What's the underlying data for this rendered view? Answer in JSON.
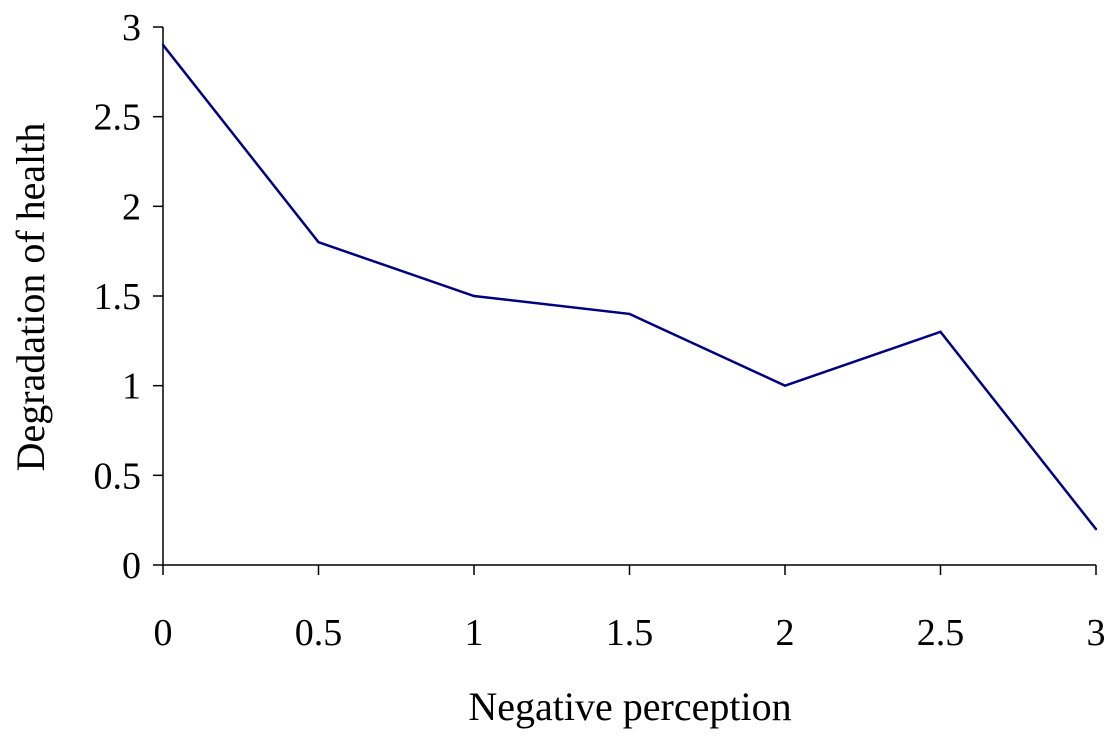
{
  "chart_data": {
    "type": "line",
    "title": "",
    "xlabel": "Negative perception",
    "ylabel": "Degradation of health",
    "x": [
      0,
      0.5,
      1,
      1.5,
      2,
      2.5,
      3
    ],
    "series": [
      {
        "values": [
          2.9,
          1.8,
          1.5,
          1.4,
          1.0,
          1.3,
          0.2
        ]
      }
    ],
    "xlim": [
      0,
      3
    ],
    "ylim": [
      0,
      3
    ],
    "x_ticks": [
      "0",
      "0.5",
      "1",
      "1.5",
      "2",
      "2.5",
      "3"
    ],
    "y_ticks": [
      "0",
      "0.5",
      "1",
      "1.5",
      "2",
      "2.5",
      "3"
    ],
    "grid": false,
    "line_color": "#000080",
    "axis_color": "#000000"
  }
}
